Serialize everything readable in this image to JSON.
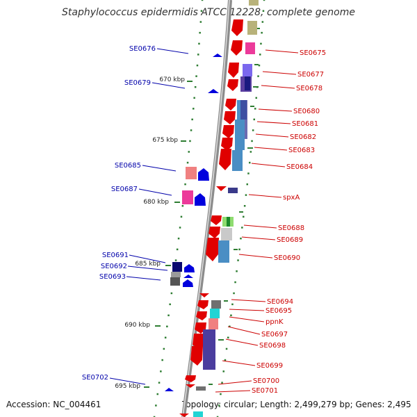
{
  "title": "Staphylococcus epidermidis ATCC 12228, complete genome",
  "footer": {
    "accession": "Accession: NC_004461",
    "stats": "Topology: circular; Length: 2,499,279 bp; Genes: 2,495"
  },
  "scale_labels": [
    "670 kbp",
    "675 kbp",
    "680 kbp",
    "685 kbp",
    "690 kbp",
    "695 kbp"
  ],
  "colors": {
    "forward_strand": "#e00000",
    "reverse_strand": "#0000dd",
    "backbone": "#8c8c8c",
    "tick": "#2e7d32",
    "right_label": "#cc0000",
    "left_label": "#0000aa"
  },
  "right_labels": [
    "SE0675",
    "SE0677",
    "SE0678",
    "SE0680",
    "SE0681",
    "SE0682",
    "SE0683",
    "SE0684",
    "spxA",
    "SE0688",
    "SE0689",
    "SE0690",
    "SE0694",
    "SE0695",
    "ppnK",
    "SE0697",
    "SE0698",
    "SE0699",
    "SE0700",
    "SE0701"
  ],
  "left_labels": [
    "SE0676",
    "SE0679",
    "SE0685",
    "SE0687",
    "SE0691",
    "SE0692",
    "SE0693",
    "SE0702"
  ]
}
